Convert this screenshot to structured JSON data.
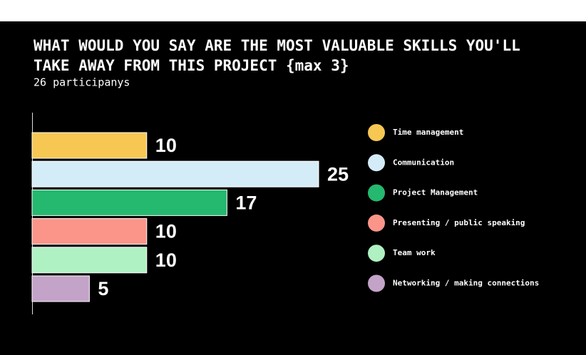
{
  "chart_data": {
    "type": "bar",
    "orientation": "horizontal",
    "title": [
      "WHAT WOULD YOU SAY ARE THE MOST VALUABLE SKILLS YOU'LL",
      "TAKE AWAY FROM THIS PROJECT {max 3}"
    ],
    "subtitle": "26 participanys",
    "categories": [
      "Time management",
      "Communication",
      "Project Management",
      "Presenting / public speaking",
      "Team work",
      "Networking / making connections"
    ],
    "values": [
      10,
      25,
      17,
      10,
      10,
      5
    ],
    "colors": [
      "#f6c752",
      "#d4ecf7",
      "#25b86f",
      "#fb958a",
      "#aff1c2",
      "#c4a3c9"
    ],
    "legend": "right"
  }
}
